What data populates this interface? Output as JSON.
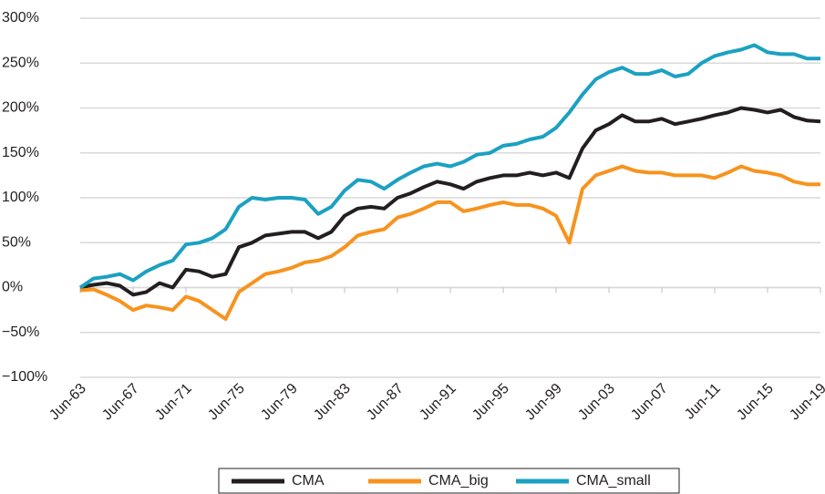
{
  "chart_data": {
    "type": "line",
    "categories": [
      "Jun-63",
      null,
      null,
      null,
      "Jun-67",
      null,
      null,
      null,
      "Jun-71",
      null,
      null,
      null,
      "Jun-75",
      null,
      null,
      null,
      "Jun-79",
      null,
      null,
      null,
      "Jun-83",
      null,
      null,
      null,
      "Jun-87",
      null,
      null,
      null,
      "Jun-91",
      null,
      null,
      null,
      "Jun-95",
      null,
      null,
      null,
      "Jun-99",
      null,
      null,
      null,
      "Jun-03",
      null,
      null,
      null,
      "Jun-07",
      null,
      null,
      null,
      "Jun-11",
      null,
      null,
      null,
      "Jun-15",
      null,
      null,
      null,
      "Jun-19"
    ],
    "series": [
      {
        "name": "CMA",
        "color": "#231f20",
        "values": [
          0,
          3,
          5,
          2,
          -8,
          -5,
          5,
          0,
          20,
          18,
          12,
          15,
          45,
          50,
          58,
          60,
          62,
          62,
          55,
          62,
          80,
          88,
          90,
          88,
          100,
          105,
          112,
          118,
          115,
          110,
          118,
          122,
          125,
          125,
          128,
          125,
          128,
          122,
          155,
          175,
          182,
          192,
          185,
          185,
          188,
          182,
          185,
          188,
          192,
          195,
          200,
          198,
          195,
          198,
          190,
          186,
          185
        ]
      },
      {
        "name": "CMA_big",
        "color": "#f7931e",
        "values": [
          -3,
          -2,
          -8,
          -15,
          -25,
          -20,
          -22,
          -25,
          -10,
          -15,
          -25,
          -35,
          -5,
          5,
          15,
          18,
          22,
          28,
          30,
          35,
          45,
          58,
          62,
          65,
          78,
          82,
          88,
          95,
          95,
          85,
          88,
          92,
          95,
          92,
          92,
          88,
          80,
          50,
          110,
          125,
          130,
          135,
          130,
          128,
          128,
          125,
          125,
          125,
          122,
          128,
          135,
          130,
          128,
          125,
          118,
          115,
          115
        ]
      },
      {
        "name": "CMA_small",
        "color": "#1ba1c1",
        "values": [
          0,
          10,
          12,
          15,
          8,
          18,
          25,
          30,
          48,
          50,
          55,
          65,
          90,
          100,
          98,
          100,
          100,
          98,
          82,
          90,
          108,
          120,
          118,
          110,
          120,
          128,
          135,
          138,
          135,
          140,
          148,
          150,
          158,
          160,
          165,
          168,
          178,
          195,
          215,
          232,
          240,
          245,
          238,
          238,
          242,
          235,
          238,
          250,
          258,
          262,
          265,
          270,
          262,
          260,
          260,
          255,
          255
        ]
      }
    ],
    "ylim": [
      -100,
      300
    ],
    "yticks": [
      {
        "value": -100,
        "label": "−100%"
      },
      {
        "value": -50,
        "label": "−50%"
      },
      {
        "value": 0,
        "label": "0%"
      },
      {
        "value": 50,
        "label": "50%"
      },
      {
        "value": 100,
        "label": "100%"
      },
      {
        "value": 150,
        "label": "150%"
      },
      {
        "value": 200,
        "label": "200%"
      },
      {
        "value": 250,
        "label": "250%"
      },
      {
        "value": 300,
        "label": "300%"
      }
    ],
    "grid": true,
    "legend": "bottom"
  }
}
